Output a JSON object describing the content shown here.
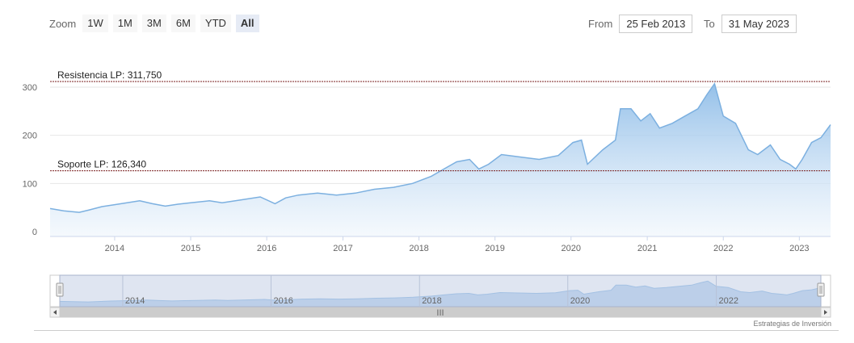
{
  "range_selector": {
    "zoom_label": "Zoom",
    "buttons": [
      "1W",
      "1M",
      "3M",
      "6M",
      "YTD",
      "All"
    ],
    "selected": "All",
    "from_label": "From",
    "from_value": "25 Feb 2013",
    "to_label": "To",
    "to_value": "31 May 2023"
  },
  "credits": "Estrategias de Inversión",
  "colors": {
    "line": "#7cb0e0",
    "area_top": "#8fbde8",
    "plot_line": "#7a1f1f",
    "navigator_mask": "#c5cfe6"
  },
  "chart_data": {
    "type": "area",
    "title": "",
    "xlabel": "",
    "ylabel": "",
    "x_range": [
      "2013-02-25",
      "2023-05-31"
    ],
    "ylim": [
      0,
      300
    ],
    "y_ticks": [
      0,
      100,
      200,
      300
    ],
    "x_ticks": [
      "2014",
      "2015",
      "2016",
      "2017",
      "2018",
      "2019",
      "2020",
      "2021",
      "2022",
      "2023"
    ],
    "grid": "horizontal",
    "plot_lines": [
      {
        "label": "Resistencia LP: 311,750",
        "value": 311.75
      },
      {
        "label": "Soporte LP: 126,340",
        "value": 126.34
      }
    ],
    "series": [
      {
        "values": [
          [
            "2013-02-25",
            48
          ],
          [
            "2013-05-01",
            43
          ],
          [
            "2013-07-15",
            40
          ],
          [
            "2013-09-01",
            45
          ],
          [
            "2013-11-01",
            52
          ],
          [
            "2014-01-01",
            56
          ],
          [
            "2014-03-01",
            60
          ],
          [
            "2014-05-01",
            64
          ],
          [
            "2014-07-01",
            58
          ],
          [
            "2014-09-01",
            53
          ],
          [
            "2014-11-01",
            57
          ],
          [
            "2015-01-01",
            60
          ],
          [
            "2015-04-01",
            64
          ],
          [
            "2015-06-01",
            60
          ],
          [
            "2015-09-01",
            66
          ],
          [
            "2015-12-01",
            72
          ],
          [
            "2016-02-10",
            58
          ],
          [
            "2016-04-01",
            70
          ],
          [
            "2016-06-01",
            76
          ],
          [
            "2016-09-01",
            80
          ],
          [
            "2016-12-01",
            76
          ],
          [
            "2017-03-01",
            80
          ],
          [
            "2017-06-01",
            88
          ],
          [
            "2017-09-01",
            92
          ],
          [
            "2017-12-01",
            100
          ],
          [
            "2018-03-01",
            115
          ],
          [
            "2018-05-01",
            130
          ],
          [
            "2018-07-01",
            145
          ],
          [
            "2018-09-01",
            150
          ],
          [
            "2018-10-15",
            130
          ],
          [
            "2018-12-01",
            140
          ],
          [
            "2019-02-01",
            160
          ],
          [
            "2019-05-01",
            155
          ],
          [
            "2019-08-01",
            150
          ],
          [
            "2019-11-01",
            158
          ],
          [
            "2020-01-10",
            185
          ],
          [
            "2020-02-20",
            190
          ],
          [
            "2020-03-20",
            140
          ],
          [
            "2020-06-01",
            170
          ],
          [
            "2020-08-01",
            190
          ],
          [
            "2020-08-25",
            255
          ],
          [
            "2020-10-15",
            255
          ],
          [
            "2020-12-01",
            230
          ],
          [
            "2021-01-15",
            245
          ],
          [
            "2021-03-01",
            215
          ],
          [
            "2021-05-01",
            225
          ],
          [
            "2021-07-01",
            240
          ],
          [
            "2021-09-01",
            255
          ],
          [
            "2021-10-15",
            285
          ],
          [
            "2021-11-20",
            307
          ],
          [
            "2022-01-01",
            240
          ],
          [
            "2022-03-01",
            225
          ],
          [
            "2022-05-01",
            170
          ],
          [
            "2022-06-15",
            160
          ],
          [
            "2022-08-15",
            180
          ],
          [
            "2022-10-01",
            150
          ],
          [
            "2022-11-15",
            140
          ],
          [
            "2022-12-15",
            130
          ],
          [
            "2023-01-15",
            150
          ],
          [
            "2023-03-01",
            185
          ],
          [
            "2023-04-15",
            195
          ],
          [
            "2023-05-31",
            222
          ]
        ]
      }
    ],
    "navigator": {
      "x_labels": [
        "2014",
        "2016",
        "2018",
        "2020",
        "2022"
      ],
      "scrollbar_grip": "III"
    }
  }
}
